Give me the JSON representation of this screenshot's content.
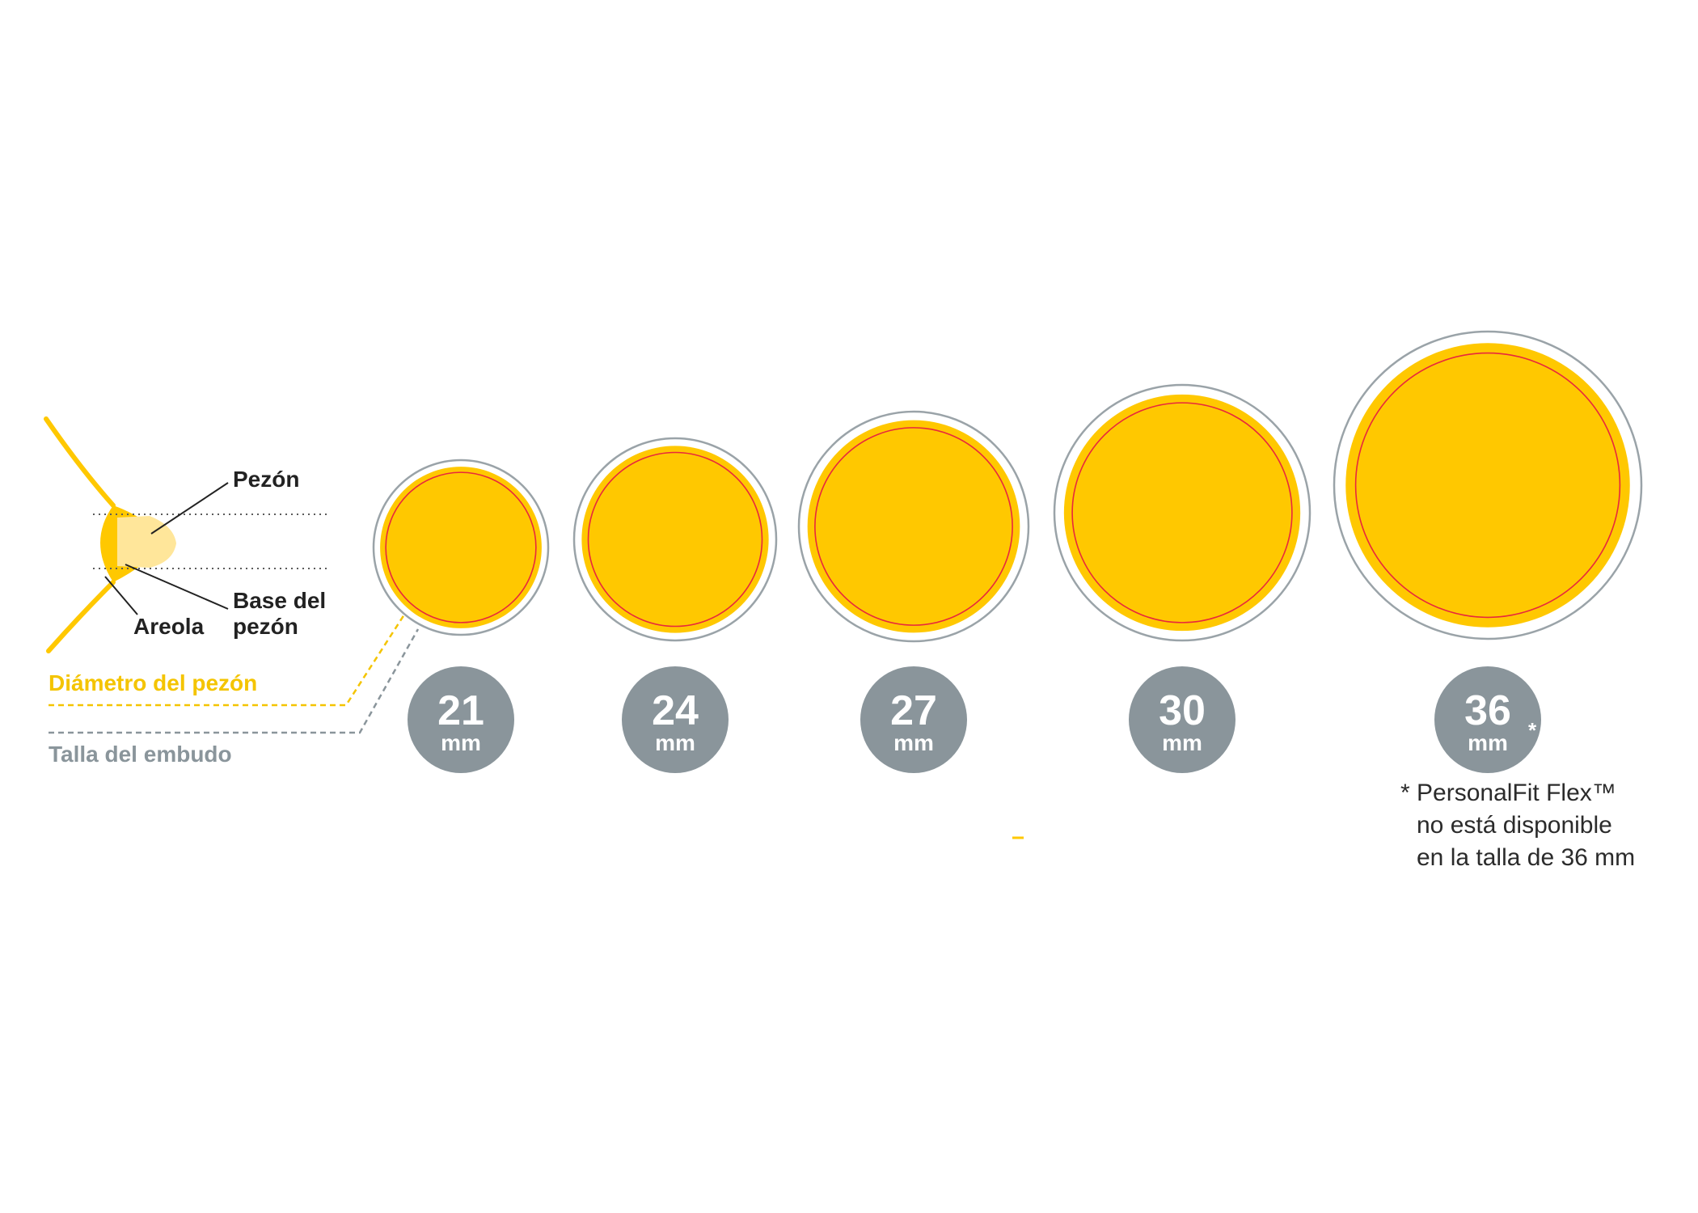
{
  "anatomy": {
    "nipple_label": "Pezón",
    "nipple_base_label_line1": "Base del",
    "nipple_base_label_line2": "pezón",
    "areola_label": "Areola"
  },
  "legend": {
    "nipple_diameter": "Diámetro del pezón",
    "funnel_size": "Talla del embudo"
  },
  "sizes": [
    {
      "value": "21",
      "unit": "mm",
      "asterisk": ""
    },
    {
      "value": "24",
      "unit": "mm",
      "asterisk": ""
    },
    {
      "value": "27",
      "unit": "mm",
      "asterisk": ""
    },
    {
      "value": "30",
      "unit": "mm",
      "asterisk": ""
    },
    {
      "value": "36",
      "unit": "mm",
      "asterisk": "*"
    }
  ],
  "footnote": {
    "line1": "* PersonalFit Flex™",
    "line2": "no está disponible",
    "line3": "en la talla de 36 mm"
  },
  "colors": {
    "yellow": "#FFC800",
    "light_yellow": "#FFE69A",
    "red_ring": "#E8283C",
    "gray_ring": "#9AA3A8",
    "badge_gray": "#8A959B",
    "label_yellow": "#F4C400",
    "label_gray": "#8A959B",
    "text_dark": "#2B2B2B"
  }
}
